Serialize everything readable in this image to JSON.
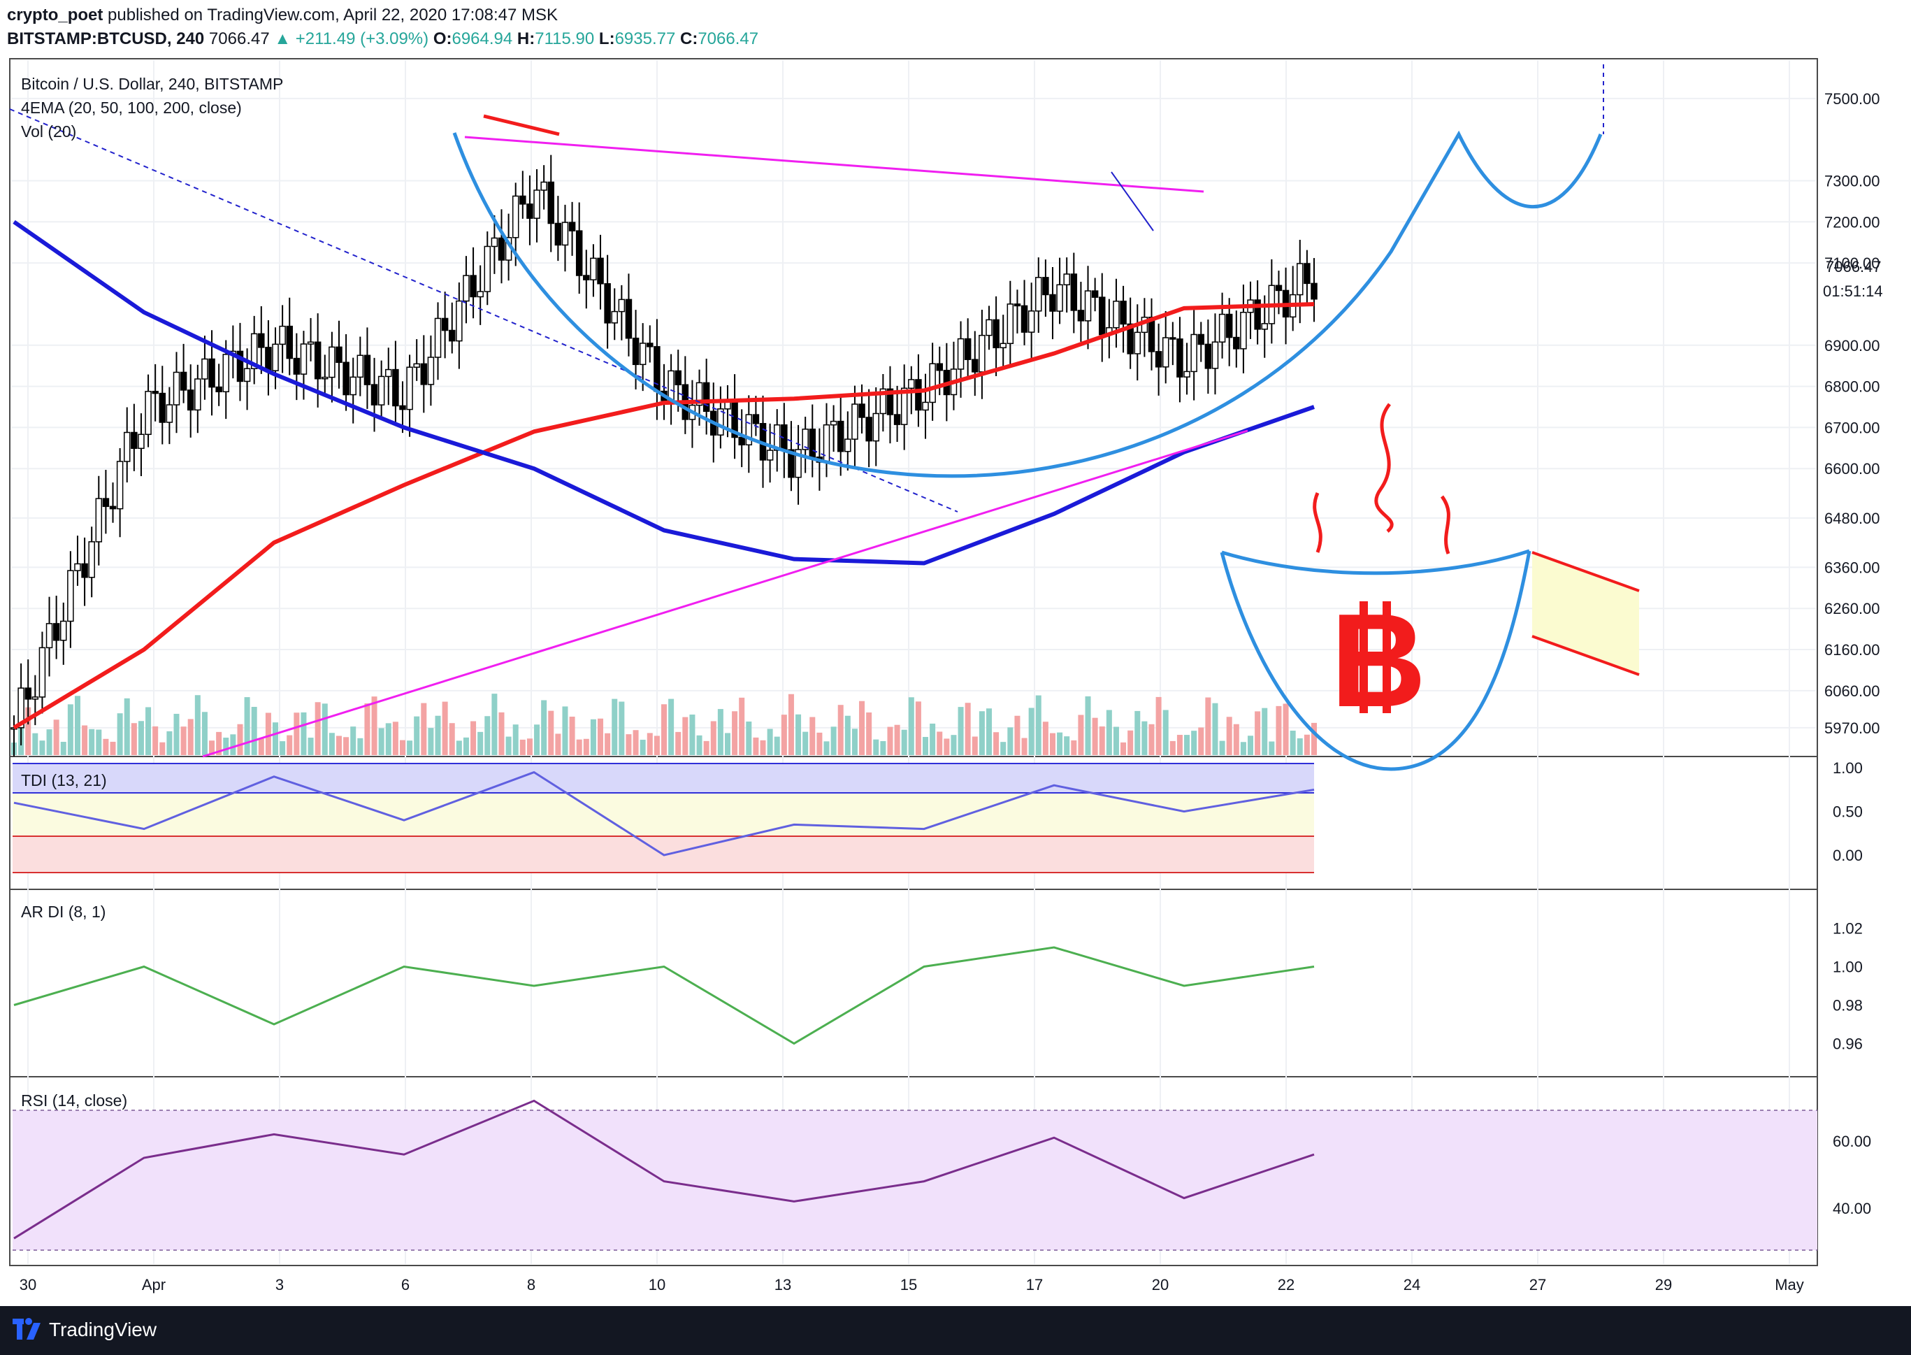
{
  "header": {
    "author": "crypto_poet",
    "published_text": "published on TradingView.com, April 22, 2020 17:08:47 MSK",
    "symbol": "BITSTAMP:BTCUSD, 240",
    "last": "7066.47",
    "change": "▲ +211.49 (+3.09%)",
    "open_label": "O:",
    "open": "6964.94",
    "high_label": "H:",
    "high": "7115.90",
    "low_label": "L:",
    "low": "6935.77",
    "close_label": "C:",
    "close": "7066.47"
  },
  "legend": {
    "title": "Bitcoin / U.S. Dollar, 240, BITSTAMP",
    "ema": "4EMA (20, 50, 100, 200, close)",
    "vol": "Vol (20)",
    "tdi": "TDI (13, 21)",
    "ardi": "AR DI (8, 1)",
    "rsi": "RSI (14, close)"
  },
  "price_axis": {
    "current_price": "7066.47",
    "countdown": "01:51:14"
  },
  "footer": {
    "brand": "TradingView"
  },
  "colors": {
    "ema_red": "#f21c1c",
    "ema_blue": "#1a1ad8",
    "cup_blue": "#2e8fe0",
    "magenta": "#f01ff0",
    "bull": "#26a69a",
    "bear": "#000000",
    "tdi_band": "#c8c8f8",
    "rsi_band": "#eedcfa"
  },
  "icons": [
    "bitcoin-logo-icon",
    "tradingview-logo-icon"
  ],
  "chart_data": [
    {
      "type": "candlestick",
      "title": "Bitcoin / U.S. Dollar, 240, BITSTAMP",
      "x": [
        "Mar 30",
        "Apr 1",
        "Apr 3",
        "Apr 6",
        "Apr 8",
        "Apr 10",
        "Apr 13",
        "Apr 15",
        "Apr 17",
        "Apr 20",
        "Apr 22"
      ],
      "close": [
        5970,
        6740,
        6900,
        6780,
        7280,
        6800,
        6630,
        6790,
        7040,
        6860,
        7066
      ],
      "ylim": [
        5900,
        7600
      ],
      "yticks": [
        "7500.00",
        "7300.00",
        "7200.00",
        "7100.00",
        "6900.00",
        "6800.00",
        "6700.00",
        "6600.00",
        "6480.00",
        "6360.00",
        "6260.00",
        "6160.00",
        "6060.00",
        "5970.00"
      ],
      "xticks": [
        "30",
        "Apr",
        "3",
        "6",
        "8",
        "10",
        "13",
        "15",
        "17",
        "20",
        "22",
        "24",
        "27",
        "29",
        "May"
      ],
      "series": [
        {
          "name": "EMA",
          "values": [
            5970,
            6160,
            6420,
            6560,
            6690,
            6760,
            6770,
            6790,
            6880,
            6990,
            7000
          ]
        },
        {
          "name": "EMA",
          "values": [
            7200,
            6980,
            6830,
            6700,
            6600,
            6450,
            6380,
            6370,
            6490,
            6640,
            6750
          ]
        }
      ]
    },
    {
      "type": "line",
      "title": "TDI (13, 21)",
      "x": [
        "Mar 30",
        "Apr 1",
        "Apr 3",
        "Apr 6",
        "Apr 8",
        "Apr 10",
        "Apr 13",
        "Apr 15",
        "Apr 17",
        "Apr 20",
        "Apr 22"
      ],
      "values": [
        0.6,
        0.3,
        0.9,
        0.4,
        0.95,
        0.0,
        0.35,
        0.3,
        0.8,
        0.5,
        0.75
      ],
      "yticks": [
        "1.00",
        "0.50",
        "0.00"
      ]
    },
    {
      "type": "line",
      "title": "AR DI (8, 1)",
      "x": [
        "Mar 30",
        "Apr 1",
        "Apr 3",
        "Apr 6",
        "Apr 8",
        "Apr 10",
        "Apr 13",
        "Apr 15",
        "Apr 17",
        "Apr 20",
        "Apr 22"
      ],
      "values": [
        0.98,
        1.0,
        0.97,
        1.0,
        0.99,
        1.0,
        0.96,
        1.0,
        1.01,
        0.99,
        1.0
      ],
      "yticks": [
        "1.02",
        "1.00",
        "0.98",
        "0.96"
      ]
    },
    {
      "type": "line",
      "title": "RSI (14, close)",
      "x": [
        "Mar 30",
        "Apr 1",
        "Apr 3",
        "Apr 6",
        "Apr 8",
        "Apr 10",
        "Apr 13",
        "Apr 15",
        "Apr 17",
        "Apr 20",
        "Apr 22"
      ],
      "values": [
        31,
        55,
        62,
        56,
        72,
        48,
        42,
        48,
        61,
        43,
        56
      ],
      "yticks": [
        "60.00",
        "40.00"
      ],
      "band": [
        30,
        70
      ]
    }
  ]
}
